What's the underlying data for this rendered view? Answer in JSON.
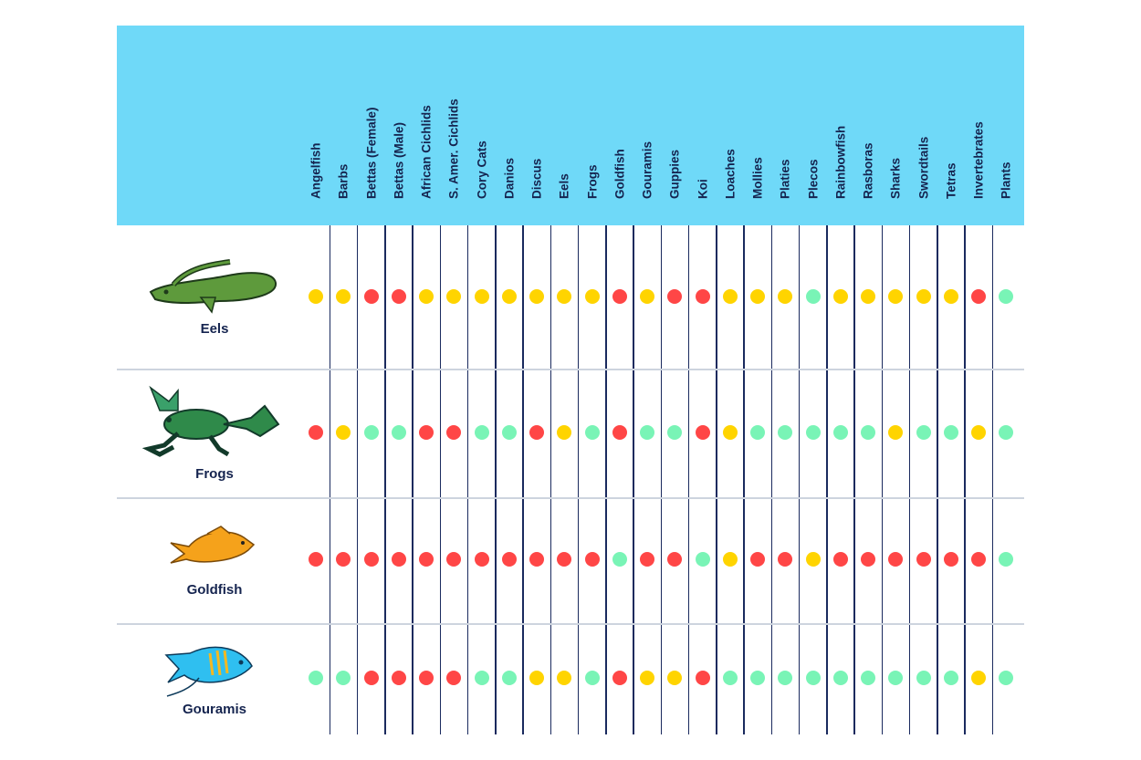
{
  "colors": {
    "compatible": "#79f4b6",
    "caution": "#ffd400",
    "incompatible": "#ff4646",
    "header": "#6fd9f8"
  },
  "legend_codes": {
    "G": "compatible",
    "Y": "caution",
    "R": "incompatible"
  },
  "chart_data": {
    "type": "table",
    "columns": [
      "Angelfish",
      "Barbs",
      "Bettas (Female)",
      "Bettas (Male)",
      "African Cichlids",
      "S. Amer. Cichlids",
      "Cory Cats",
      "Danios",
      "Discus",
      "Eels",
      "Frogs",
      "Goldfish",
      "Gouramis",
      "Guppies",
      "Koi",
      "Loaches",
      "Mollies",
      "Platies",
      "Plecos",
      "Rainbowfish",
      "Rasboras",
      "Sharks",
      "Swordtails",
      "Tetras",
      "Invertebrates",
      "Plants"
    ],
    "rows": [
      {
        "label": "Eels",
        "icon": "eel-icon",
        "values": [
          "Y",
          "Y",
          "R",
          "R",
          "Y",
          "Y",
          "Y",
          "Y",
          "Y",
          "Y",
          "Y",
          "R",
          "Y",
          "R",
          "R",
          "Y",
          "Y",
          "Y",
          "G",
          "Y",
          "Y",
          "Y",
          "Y",
          "Y",
          "R",
          "G"
        ]
      },
      {
        "label": "Frogs",
        "icon": "frog-icon",
        "values": [
          "R",
          "Y",
          "G",
          "G",
          "R",
          "R",
          "G",
          "G",
          "R",
          "Y",
          "G",
          "R",
          "G",
          "G",
          "R",
          "Y",
          "G",
          "G",
          "G",
          "G",
          "G",
          "Y",
          "G",
          "G",
          "Y",
          "G"
        ]
      },
      {
        "label": "Goldfish",
        "icon": "goldfish-icon",
        "values": [
          "R",
          "R",
          "R",
          "R",
          "R",
          "R",
          "R",
          "R",
          "R",
          "R",
          "R",
          "G",
          "R",
          "R",
          "G",
          "Y",
          "R",
          "R",
          "Y",
          "R",
          "R",
          "R",
          "R",
          "R",
          "R",
          "G"
        ]
      },
      {
        "label": "Gouramis",
        "icon": "gourami-icon",
        "values": [
          "G",
          "G",
          "R",
          "R",
          "R",
          "R",
          "G",
          "G",
          "Y",
          "Y",
          "G",
          "R",
          "Y",
          "Y",
          "R",
          "G",
          "G",
          "G",
          "G",
          "G",
          "G",
          "G",
          "G",
          "G",
          "Y",
          "G"
        ]
      }
    ]
  }
}
